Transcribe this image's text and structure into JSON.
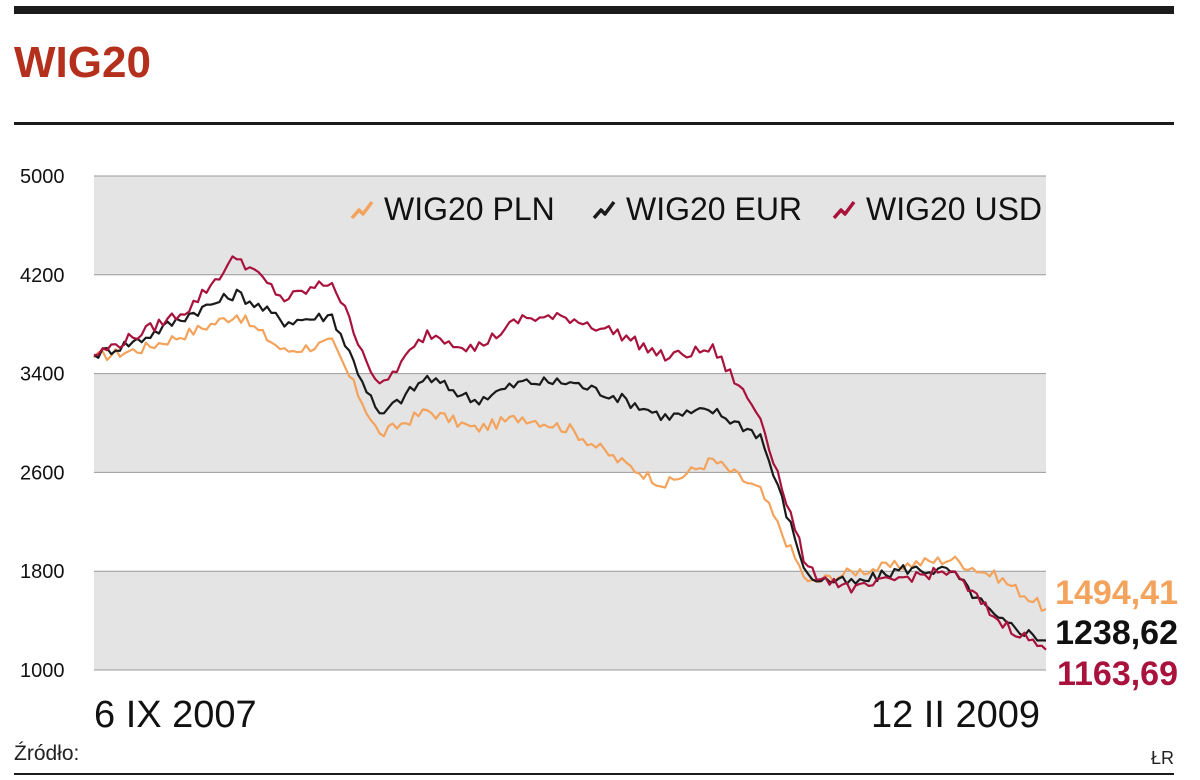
{
  "header": {
    "title": "WIG20"
  },
  "footer": {
    "source": "Źródło:",
    "credit": "ŁR"
  },
  "colors": {
    "pln": "#f3a35c",
    "eur": "#1a1a1a",
    "usd": "#a8123c",
    "title": "#b5301c",
    "band": "#e4e4e4"
  },
  "chart_data": {
    "type": "line",
    "title": "WIG20",
    "x_start_label": "6 IX 2007",
    "x_end_label": "12 II 2009",
    "ylim": [
      1000,
      5000
    ],
    "yticks": [
      "5000",
      "4200",
      "3400",
      "2600",
      "1800",
      "1000"
    ],
    "grid": "alternating horizontal bands",
    "legend_position": "top-right",
    "x": [
      0,
      0.05,
      0.1,
      0.15,
      0.2,
      0.25,
      0.3,
      0.35,
      0.4,
      0.45,
      0.5,
      0.55,
      0.6,
      0.65,
      0.7,
      0.75,
      0.8,
      0.85,
      0.9,
      0.95,
      1.0
    ],
    "series": [
      {
        "name": "WIG20 PLN",
        "key": "pln",
        "end_value": "1494,41",
        "values": [
          3530,
          3600,
          3730,
          3880,
          3580,
          3650,
          2900,
          3100,
          2950,
          3050,
          2950,
          2700,
          2500,
          2700,
          2450,
          1700,
          1800,
          1850,
          1900,
          1750,
          1494
        ]
      },
      {
        "name": "WIG20 EUR",
        "key": "eur",
        "end_value": "1238,62",
        "values": [
          3550,
          3680,
          3880,
          4050,
          3820,
          3870,
          3050,
          3370,
          3180,
          3330,
          3330,
          3210,
          3050,
          3100,
          2900,
          1750,
          1700,
          1820,
          1800,
          1400,
          1239
        ]
      },
      {
        "name": "WIG20 USD",
        "key": "usd",
        "end_value": "1163,69",
        "values": [
          3550,
          3730,
          3930,
          4350,
          4000,
          4150,
          3280,
          3730,
          3600,
          3850,
          3850,
          3730,
          3530,
          3600,
          3050,
          1800,
          1650,
          1750,
          1800,
          1400,
          1164
        ]
      }
    ]
  }
}
